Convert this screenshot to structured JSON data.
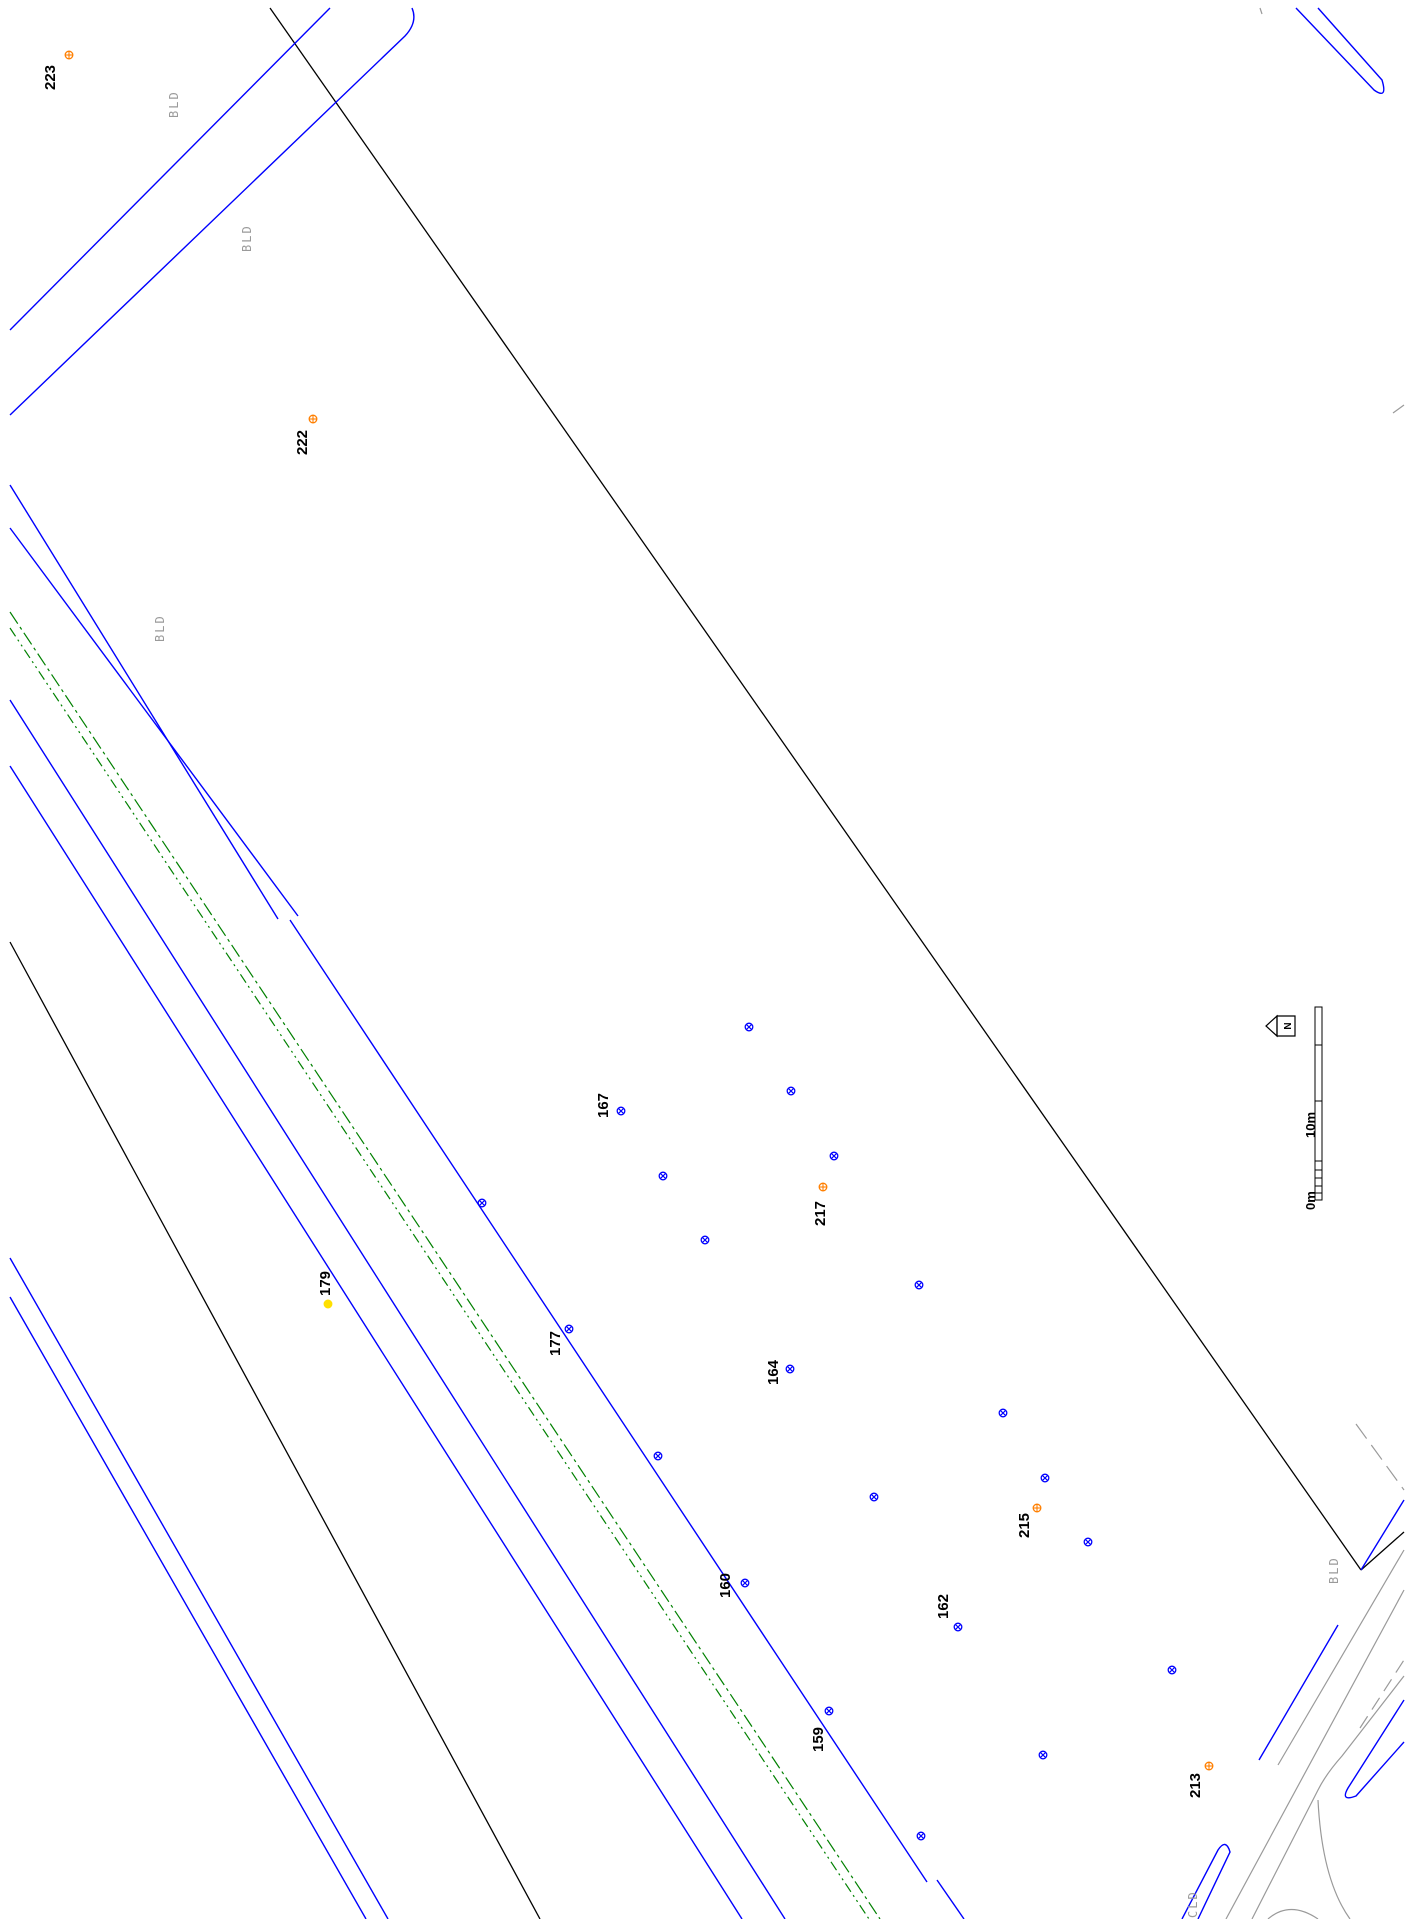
{
  "map": {
    "point_labels": {
      "p223": "223",
      "p222": "222",
      "p179": "179",
      "p177": "177",
      "p167": "167",
      "p217": "217",
      "p164": "164",
      "p160": "160",
      "p162": "162",
      "p215": "215",
      "p159": "159",
      "p213": "213"
    },
    "area_labels": {
      "bld_1": "BLD",
      "bld_2": "BLD",
      "bld_3": "BLD",
      "bld_4": "BLD",
      "bld_5": "CLD"
    },
    "north_label": "N",
    "scale_bar": {
      "label_start": "0m",
      "label_end": "10m"
    },
    "colors": {
      "road_edge": "#0000ff",
      "boundary": "#000000",
      "centerline": "#008000",
      "point_blue": "#0000ff",
      "point_orange": "#ff7f00",
      "point_yellow": "#ffe000",
      "building_label": "#9a9a9a",
      "kerb": "#9a9a9a"
    }
  }
}
